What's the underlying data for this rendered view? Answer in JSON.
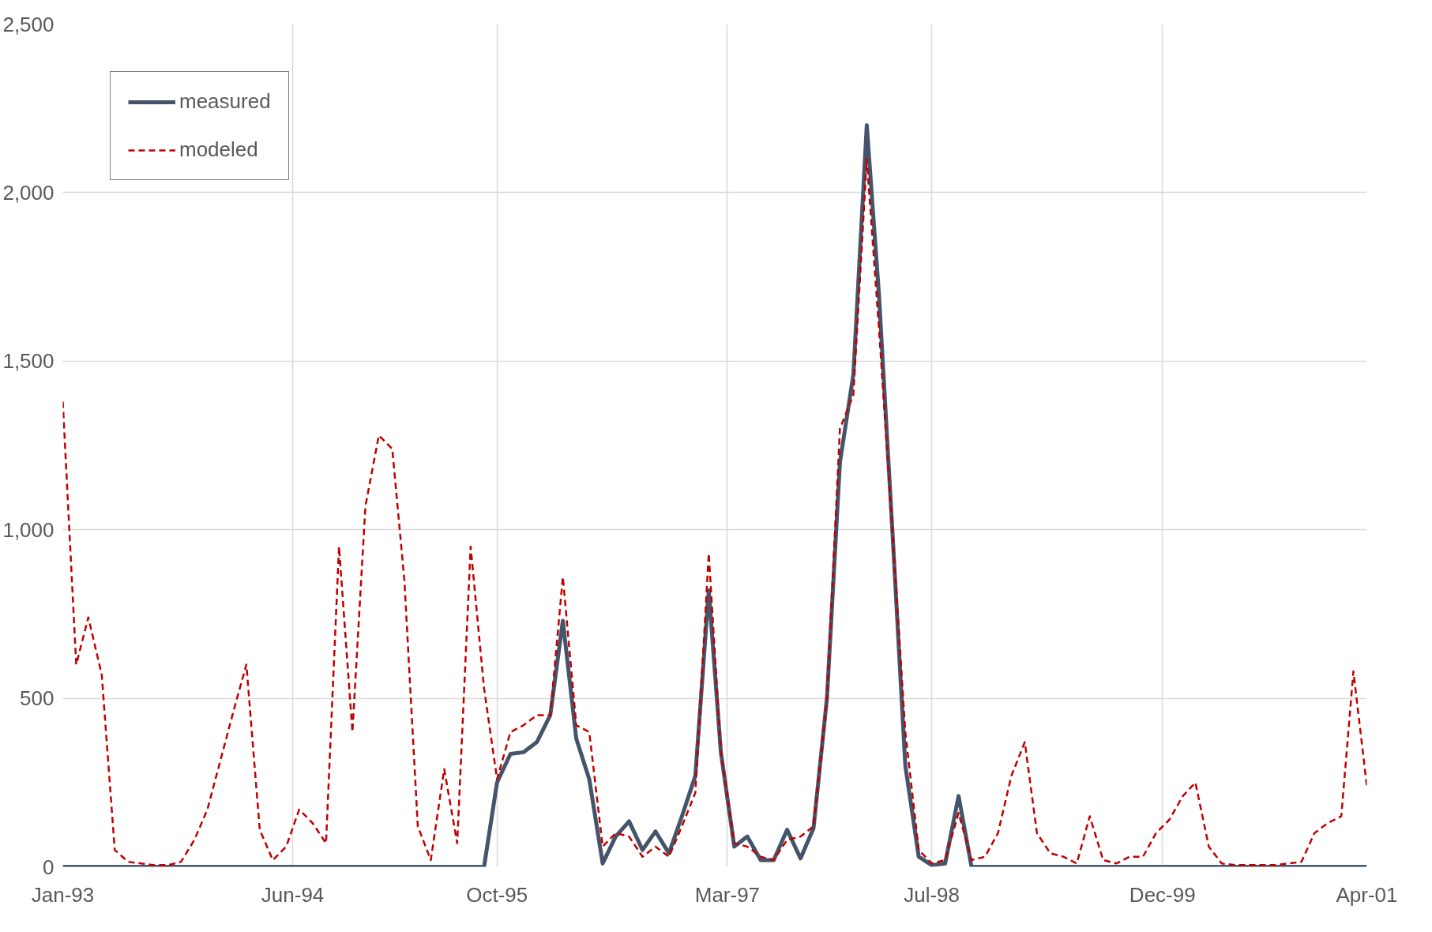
{
  "chart_data": {
    "type": "line",
    "x": [
      "1993-01",
      "1993-02",
      "1993-03",
      "1993-04",
      "1993-05",
      "1993-06",
      "1993-07",
      "1993-08",
      "1993-09",
      "1993-10",
      "1993-11",
      "1993-12",
      "1994-01",
      "1994-02",
      "1994-03",
      "1994-04",
      "1994-05",
      "1994-06",
      "1994-07",
      "1994-08",
      "1994-09",
      "1994-10",
      "1994-11",
      "1994-12",
      "1995-01",
      "1995-02",
      "1995-03",
      "1995-04",
      "1995-05",
      "1995-06",
      "1995-07",
      "1995-08",
      "1995-09",
      "1995-10",
      "1995-11",
      "1995-12",
      "1996-01",
      "1996-02",
      "1996-03",
      "1996-04",
      "1996-05",
      "1996-06",
      "1996-07",
      "1996-08",
      "1996-09",
      "1996-10",
      "1996-11",
      "1996-12",
      "1997-01",
      "1997-02",
      "1997-03",
      "1997-04",
      "1997-05",
      "1997-06",
      "1997-07",
      "1997-08",
      "1997-09",
      "1997-10",
      "1997-11",
      "1997-12",
      "1998-01",
      "1998-02",
      "1998-03",
      "1998-04",
      "1998-05",
      "1998-06",
      "1998-07",
      "1998-08",
      "1998-09",
      "1998-10",
      "1998-11",
      "1998-12",
      "1999-01",
      "1999-02",
      "1999-03",
      "1999-04",
      "1999-05",
      "1999-06",
      "1999-07",
      "1999-08",
      "1999-09",
      "1999-10",
      "1999-11",
      "1999-12",
      "2000-01",
      "2000-02",
      "2000-03",
      "2000-04",
      "2000-05",
      "2000-06",
      "2000-07",
      "2000-08",
      "2000-09",
      "2000-10",
      "2000-11",
      "2000-12",
      "2001-01",
      "2001-02",
      "2001-03",
      "2001-04"
    ],
    "series": [
      {
        "name": "measured",
        "color": "#44546a",
        "line_style": "solid",
        "values": [
          0,
          0,
          0,
          0,
          0,
          0,
          0,
          0,
          0,
          0,
          0,
          0,
          0,
          0,
          0,
          0,
          0,
          0,
          0,
          0,
          0,
          0,
          0,
          0,
          0,
          0,
          0,
          0,
          0,
          0,
          0,
          0,
          0,
          250,
          335,
          340,
          370,
          450,
          730,
          380,
          260,
          10,
          90,
          135,
          50,
          105,
          40,
          150,
          270,
          820,
          340,
          60,
          90,
          20,
          20,
          110,
          25,
          115,
          500,
          1200,
          1460,
          2200,
          1700,
          1000,
          300,
          30,
          5,
          10,
          210,
          0,
          0,
          0,
          0,
          0,
          0,
          0,
          0,
          0,
          0,
          0,
          0,
          0,
          0,
          0,
          0,
          0,
          0,
          0,
          0,
          0,
          0,
          0,
          0,
          0,
          0,
          0,
          0,
          0,
          0,
          0
        ]
      },
      {
        "name": "modeled",
        "color": "#c00000",
        "line_style": "dashed",
        "values": [
          1380,
          600,
          740,
          570,
          50,
          15,
          10,
          5,
          5,
          15,
          80,
          170,
          320,
          470,
          600,
          110,
          20,
          60,
          170,
          130,
          70,
          950,
          400,
          1070,
          1280,
          1240,
          850,
          120,
          20,
          290,
          70,
          950,
          530,
          260,
          400,
          420,
          450,
          450,
          860,
          420,
          400,
          60,
          100,
          90,
          30,
          60,
          30,
          120,
          220,
          930,
          340,
          70,
          60,
          30,
          20,
          80,
          90,
          120,
          500,
          1300,
          1400,
          2100,
          1600,
          1000,
          400,
          50,
          10,
          20,
          160,
          20,
          30,
          100,
          270,
          370,
          100,
          40,
          30,
          10,
          150,
          20,
          10,
          30,
          30,
          100,
          140,
          210,
          250,
          60,
          10,
          5,
          5,
          5,
          5,
          10,
          15,
          100,
          130,
          150,
          580,
          240
        ]
      }
    ],
    "xlim": [
      "1993-01-01",
      "2001-04-01"
    ],
    "xticks": [
      {
        "value": "1993-01-01",
        "label": "Jan-93"
      },
      {
        "value": "1994-06-16",
        "label": "Jun-94"
      },
      {
        "value": "1995-10-01",
        "label": "Oct-95"
      },
      {
        "value": "1997-03-16",
        "label": "Mar-97"
      },
      {
        "value": "1998-07-01",
        "label": "Jul-98"
      },
      {
        "value": "1999-12-16",
        "label": "Dec-99"
      },
      {
        "value": "2001-04-01",
        "label": "Apr-01"
      }
    ],
    "ylim": [
      0,
      2500
    ],
    "yticks": [
      0,
      500,
      {
        "value": 1000,
        "label": "1,000"
      },
      {
        "value": 1500,
        "label": "1,500"
      },
      {
        "value": 2000,
        "label": "2,000"
      },
      {
        "value": 2500,
        "label": "2,500"
      }
    ],
    "grid": true,
    "legend": "top left"
  }
}
